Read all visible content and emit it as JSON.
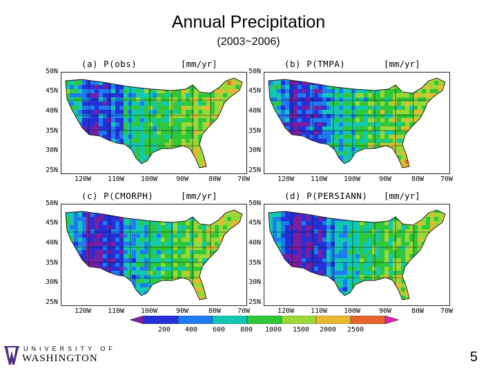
{
  "slide": {
    "title": "Annual Precipitation",
    "subtitle": "(2003~2006)",
    "page_number": "5"
  },
  "panels": [
    {
      "title": "(a)  P(obs)",
      "unit": "[mm/yr]",
      "dryness": 0.0
    },
    {
      "title": "(b)  P(TMPA)",
      "unit": "[mm/yr]",
      "dryness": 0.15
    },
    {
      "title": "(c)  P(CMORPH)",
      "unit": "[mm/yr]",
      "dryness": 0.25
    },
    {
      "title": "(d)  P(PERSIANN)",
      "unit": "[mm/yr]",
      "dryness": 0.35
    }
  ],
  "axes": {
    "lat_ticks": [
      "50N",
      "45N",
      "40N",
      "35N",
      "30N",
      "25N"
    ],
    "lon_ticks": [
      "120W",
      "110W",
      "100W",
      "90W",
      "80W",
      "70W"
    ]
  },
  "colorbar": {
    "labels": [
      "200",
      "400",
      "600",
      "800",
      "1000",
      "1500",
      "2000",
      "2500"
    ],
    "colors": [
      "#7a1fa2",
      "#2430d8",
      "#1e7cf0",
      "#12c8b4",
      "#2ec83a",
      "#9ad838",
      "#e8b830",
      "#e86428",
      "#e020b0"
    ]
  },
  "logo": {
    "top_text": "UNIVERSITY OF",
    "main_text": "WASHINGTON"
  }
}
